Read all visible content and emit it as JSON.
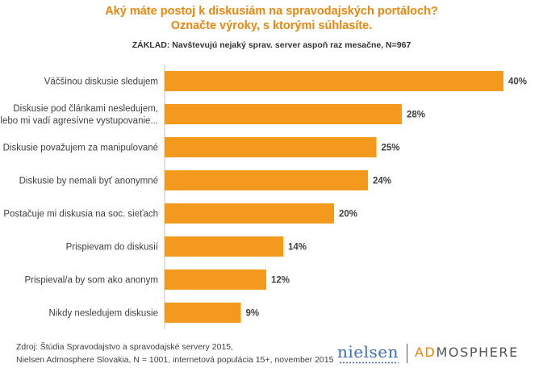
{
  "header": {
    "title_line1": "Aký máte postoj k diskusiám na spravodajských portáloch?",
    "title_line2": "Označte výroky, s ktorými súhlasíte.",
    "basis": "ZÁKLAD: Navštevujú nejaký sprav. server aspoň raz mesačne, N=967"
  },
  "chart_data": {
    "type": "bar",
    "orientation": "horizontal",
    "title": "Aký máte postoj k diskusiám na spravodajských portáloch? Označte výroky, s ktorými súhlasíte.",
    "xlabel": "",
    "ylabel": "",
    "xlim": [
      0,
      40
    ],
    "grid": false,
    "legend": "none",
    "bar_color": "#f39a1e",
    "categories": [
      [
        "Väčšinou diskusie sledujem"
      ],
      [
        "Diskusie pod článkami nesledujem,",
        "lebo mi vadí agresívne vystupovanie..."
      ],
      [
        "Diskusie považujem za manipulované"
      ],
      [
        "Diskusie by nemali byť anonymné"
      ],
      [
        "Postačuje mi diskusia na soc. sieťach"
      ],
      [
        "Prispievam do diskusií"
      ],
      [
        "Prispieval/a by som ako anonym"
      ],
      [
        "Nikdy nesledujem diskusie"
      ]
    ],
    "values": [
      40,
      28,
      25,
      24,
      20,
      14,
      12,
      9
    ],
    "value_labels": [
      "40%",
      "28%",
      "25%",
      "24%",
      "20%",
      "14%",
      "12%",
      "9%"
    ]
  },
  "source": {
    "line1": "Zdroj: Štúdia Spravodajstvo a spravodajské servery 2015,",
    "line2": "Nielsen Admosphere Slovakia, N = 1001, internetová populácia 15+, november 2015"
  },
  "logos": {
    "nielsen": "nielsen",
    "admosphere_accent": "AD",
    "admosphere_rest": "MOSPHERE"
  }
}
